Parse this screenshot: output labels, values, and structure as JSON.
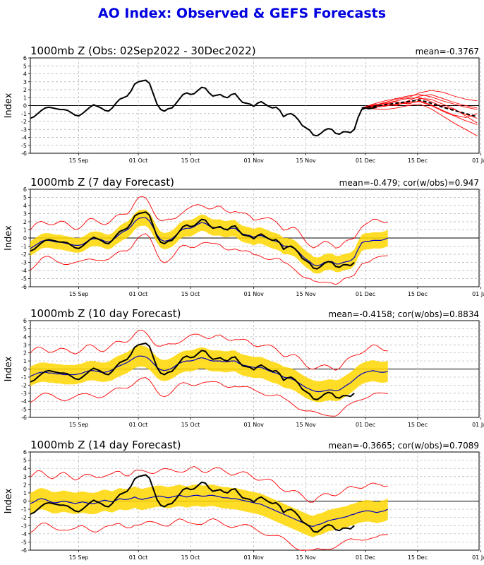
{
  "page_title": "AO Index: Observed & GEFS Forecasts",
  "colors": {
    "title": "#0000e0",
    "observed": "#000000",
    "ensemble": "#ff0000",
    "mean": "#0000c0",
    "spread": "#ffd700",
    "grid": "#b0b0b0"
  },
  "chart_data": [
    {
      "type": "line",
      "title": "1000mb Z (Obs: 02Sep2022 - 30Dec2022)",
      "stat_text": "mean=-0.3767",
      "ylabel": "Index",
      "ylim": [
        -6,
        6
      ],
      "x_ticks": [
        "15 Sep",
        "01 Oct",
        "15 Oct",
        "01 Nov",
        "15 Nov",
        "01 Dec",
        "15 Dec",
        "01 Jan"
      ],
      "observed": [
        -1.6,
        -1.4,
        -1.0,
        -0.6,
        -0.3,
        -0.2,
        -0.3,
        -0.4,
        -0.5,
        -0.5,
        -0.6,
        -0.9,
        -1.2,
        -1.3,
        -1.0,
        -0.6,
        -0.2,
        0.1,
        -0.1,
        -0.3,
        -0.6,
        -0.7,
        -0.3,
        0.3,
        0.8,
        1.0,
        1.2,
        1.8,
        2.7,
        3.0,
        3.1,
        3.2,
        2.8,
        1.5,
        0.2,
        -0.5,
        -0.7,
        -0.4,
        -0.3,
        0.2,
        0.8,
        1.4,
        1.6,
        1.4,
        1.5,
        1.9,
        2.3,
        2.2,
        1.6,
        1.2,
        1.3,
        1.4,
        1.1,
        1.0,
        1.4,
        1.5,
        0.9,
        0.4,
        0.3,
        0.2,
        -0.1,
        0.3,
        0.5,
        0.2,
        -0.1,
        -0.3,
        -0.2,
        -0.6,
        -1.4,
        -1.1,
        -1.0,
        -1.3,
        -1.8,
        -2.5,
        -2.8,
        -3.1,
        -3.7,
        -3.8,
        -3.5,
        -3.1,
        -2.9,
        -3.0,
        -3.5,
        -3.6,
        -3.3,
        -3.3,
        -3.4,
        -3.0,
        -1.5,
        -0.5,
        -0.3,
        -0.4,
        -0.3,
        -0.2
      ],
      "forecast_mean": [
        -0.3,
        -0.1,
        0.1,
        0.3,
        0.5,
        0.7,
        0.3,
        -0.2,
        -0.6,
        -1.0,
        -1.4
      ],
      "forecast_members": [
        [
          -0.3,
          0.2,
          0.6,
          0.9,
          1.2,
          1.4,
          1.1,
          0.6,
          0.2,
          -0.2,
          -0.5
        ],
        [
          -0.3,
          0.0,
          0.4,
          0.8,
          1.0,
          1.6,
          1.9,
          1.7,
          1.2,
          0.8,
          0.6
        ],
        [
          -0.3,
          -0.2,
          -0.1,
          0.2,
          0.3,
          0.5,
          0.0,
          -0.7,
          -1.3,
          -1.9,
          -2.4
        ],
        [
          -0.3,
          -0.4,
          -0.5,
          -0.3,
          0.0,
          0.2,
          -0.4,
          -1.3,
          -2.2,
          -3.0,
          -3.8
        ],
        [
          -0.3,
          0.1,
          0.3,
          0.6,
          0.9,
          1.0,
          0.5,
          -0.1,
          -0.5,
          -1.1,
          -1.6
        ],
        [
          -0.3,
          -0.1,
          0.0,
          0.1,
          0.4,
          0.9,
          0.8,
          0.2,
          -0.4,
          -1.3,
          -2.2
        ],
        [
          -0.3,
          -0.3,
          0.2,
          0.5,
          0.2,
          0.6,
          0.1,
          -0.6,
          -1.2,
          -1.5,
          -1.0
        ],
        [
          -0.3,
          0.0,
          0.3,
          0.0,
          0.6,
          1.2,
          1.4,
          0.9,
          0.4,
          0.0,
          -0.3
        ]
      ]
    },
    {
      "type": "line",
      "title": "1000mb Z (7 day Forecast)",
      "stat_text": "mean=-0.479; cor(w/obs)=0.947",
      "ylabel": "Index",
      "ylim": [
        -6,
        6
      ],
      "x_ticks": [
        "15 Sep",
        "01 Oct",
        "15 Oct",
        "01 Nov",
        "15 Nov",
        "01 Dec",
        "15 Dec",
        "01 Jan"
      ],
      "observed_visible_points": 88,
      "ens_mean": [
        -1.3,
        -1.0,
        -0.7,
        -0.4,
        -0.3,
        -0.3,
        -0.4,
        -0.5,
        -0.5,
        -0.6,
        -0.7,
        -0.8,
        -0.9,
        -0.9,
        -0.8,
        -0.5,
        -0.2,
        -0.1,
        -0.1,
        -0.2,
        -0.4,
        -0.5,
        -0.3,
        0.1,
        0.5,
        0.8,
        1.0,
        1.4,
        2.0,
        2.4,
        2.5,
        2.5,
        2.1,
        1.3,
        0.4,
        -0.2,
        -0.4,
        -0.3,
        -0.1,
        0.3,
        0.8,
        1.1,
        1.2,
        1.2,
        1.4,
        1.7,
        1.9,
        1.8,
        1.5,
        1.3,
        1.3,
        1.3,
        1.1,
        1.1,
        1.2,
        1.2,
        0.8,
        0.5,
        0.4,
        0.3,
        0.1,
        0.3,
        0.3,
        0.1,
        -0.1,
        -0.3,
        -0.4,
        -0.6,
        -1.0,
        -1.0,
        -1.1,
        -1.3,
        -1.7,
        -2.2,
        -2.6,
        -2.9,
        -3.3,
        -3.4,
        -3.3,
        -3.0,
        -2.9,
        -2.9,
        -3.2,
        -3.2,
        -3.0,
        -2.9,
        -2.8,
        -2.4,
        -1.4,
        -0.6,
        -0.4,
        -0.4,
        -0.3,
        -0.3,
        -0.3,
        -0.2,
        0.0
      ],
      "spread_halfwidth": [
        0.9,
        0.9,
        0.9,
        0.9,
        0.9,
        0.9,
        0.9,
        0.9,
        0.9,
        0.9,
        0.9,
        0.9,
        0.9,
        0.9,
        0.9,
        0.9,
        0.9,
        0.9,
        0.9,
        0.9,
        0.9,
        0.9,
        0.9,
        0.9,
        1.0,
        1.0,
        1.0,
        1.0,
        1.0,
        1.0,
        1.0,
        1.0,
        1.0,
        1.0,
        1.0,
        1.0,
        1.0,
        1.0,
        1.0,
        1.0,
        1.0,
        1.0,
        1.0,
        1.0,
        1.0,
        1.0,
        1.0,
        1.0,
        1.0,
        1.0,
        1.0,
        1.0,
        1.0,
        1.0,
        1.0,
        1.0,
        1.0,
        1.0,
        1.0,
        1.0,
        1.0,
        1.0,
        1.0,
        1.0,
        1.0,
        1.0,
        1.0,
        1.0,
        1.0,
        1.0,
        1.0,
        1.0,
        1.0,
        1.0,
        1.0,
        1.0,
        1.0,
        1.0,
        1.0,
        1.0,
        1.0,
        1.0,
        1.0,
        1.0,
        1.0,
        1.0,
        1.0,
        1.0,
        1.0,
        1.0,
        1.0,
        1.0,
        1.0,
        1.0,
        1.0,
        1.0,
        1.0
      ],
      "ens_halfrange": 2.3
    },
    {
      "type": "line",
      "title": "1000mb Z (10 day Forecast)",
      "stat_text": "mean=-0.4158; cor(w/obs)=0.8834",
      "ylabel": "Index",
      "ylim": [
        -6,
        6
      ],
      "x_ticks": [
        "15 Sep",
        "01 Oct",
        "15 Oct",
        "01 Nov",
        "15 Nov",
        "01 Dec",
        "15 Dec",
        "01 Jan"
      ],
      "observed_visible_points": 88,
      "ens_mean": [
        -0.9,
        -0.7,
        -0.5,
        -0.4,
        -0.4,
        -0.5,
        -0.5,
        -0.6,
        -0.6,
        -0.7,
        -0.7,
        -0.7,
        -0.7,
        -0.6,
        -0.5,
        -0.3,
        -0.2,
        -0.2,
        -0.3,
        -0.4,
        -0.4,
        -0.3,
        -0.1,
        0.2,
        0.4,
        0.6,
        0.8,
        1.1,
        1.4,
        1.6,
        1.6,
        1.5,
        1.2,
        0.7,
        0.2,
        -0.1,
        -0.2,
        -0.1,
        0.1,
        0.4,
        0.7,
        0.9,
        1.0,
        1.0,
        1.1,
        1.3,
        1.4,
        1.3,
        1.1,
        1.0,
        1.0,
        1.0,
        0.9,
        0.9,
        1.0,
        1.0,
        0.7,
        0.5,
        0.4,
        0.3,
        0.2,
        0.2,
        0.2,
        0.0,
        -0.2,
        -0.4,
        -0.5,
        -0.7,
        -1.0,
        -1.1,
        -1.2,
        -1.4,
        -1.7,
        -2.0,
        -2.3,
        -2.5,
        -2.7,
        -2.8,
        -2.8,
        -2.7,
        -2.6,
        -2.6,
        -2.7,
        -2.6,
        -2.3,
        -2.0,
        -1.7,
        -1.3,
        -0.9,
        -0.6,
        -0.4,
        -0.3,
        -0.2,
        -0.3,
        -0.4,
        -0.4,
        -0.3
      ],
      "spread_halfwidth": [
        1.2,
        1.2,
        1.2,
        1.2,
        1.2,
        1.2,
        1.2,
        1.2,
        1.2,
        1.2,
        1.2,
        1.2,
        1.2,
        1.2,
        1.2,
        1.2,
        1.2,
        1.2,
        1.2,
        1.2,
        1.2,
        1.2,
        1.3,
        1.3,
        1.3,
        1.3,
        1.3,
        1.3,
        1.3,
        1.3,
        1.3,
        1.3,
        1.3,
        1.3,
        1.3,
        1.3,
        1.3,
        1.3,
        1.3,
        1.3,
        1.3,
        1.3,
        1.3,
        1.3,
        1.3,
        1.3,
        1.3,
        1.3,
        1.3,
        1.3,
        1.3,
        1.3,
        1.3,
        1.3,
        1.3,
        1.3,
        1.3,
        1.3,
        1.3,
        1.3,
        1.3,
        1.3,
        1.3,
        1.3,
        1.3,
        1.3,
        1.3,
        1.3,
        1.3,
        1.3,
        1.3,
        1.3,
        1.3,
        1.3,
        1.3,
        1.3,
        1.3,
        1.3,
        1.3,
        1.3,
        1.3,
        1.3,
        1.3,
        1.3,
        1.3,
        1.3,
        1.3,
        1.3,
        1.3,
        1.3,
        1.3,
        1.3,
        1.3,
        1.3,
        1.3,
        1.3,
        1.3
      ],
      "ens_halfrange": 2.9
    },
    {
      "type": "line",
      "title": "1000mb Z (14 day Forecast)",
      "stat_text": "mean=-0.3665; cor(w/obs)=0.7089",
      "ylabel": "Index",
      "ylim": [
        -6,
        6
      ],
      "x_ticks": [
        "15 Sep",
        "01 Oct",
        "15 Oct",
        "01 Nov",
        "15 Nov",
        "01 Dec",
        "15 Dec",
        "01 Jan"
      ],
      "observed_visible_points": 88,
      "ens_mean": [
        -0.3,
        -0.1,
        0.2,
        0.3,
        0.2,
        0.0,
        -0.2,
        -0.2,
        -0.1,
        0.0,
        -0.1,
        -0.2,
        -0.3,
        -0.2,
        -0.1,
        -0.2,
        -0.3,
        -0.3,
        -0.2,
        0.0,
        0.1,
        0.0,
        -0.1,
        0.1,
        0.3,
        0.2,
        0.2,
        0.3,
        0.5,
        0.3,
        0.2,
        0.3,
        0.4,
        0.5,
        0.6,
        0.6,
        0.5,
        0.4,
        0.5,
        0.6,
        0.7,
        0.6,
        0.5,
        0.6,
        0.7,
        0.7,
        0.6,
        0.6,
        0.7,
        0.7,
        0.6,
        0.5,
        0.4,
        0.4,
        0.3,
        0.3,
        0.2,
        0.1,
        0.0,
        -0.1,
        -0.2,
        -0.3,
        -0.4,
        -0.6,
        -0.8,
        -1.0,
        -1.2,
        -1.4,
        -1.6,
        -1.8,
        -2.0,
        -2.2,
        -2.4,
        -2.6,
        -2.8,
        -3.0,
        -3.1,
        -2.9,
        -2.8,
        -2.6,
        -2.4,
        -2.3,
        -2.2,
        -2.1,
        -2.0,
        -1.9,
        -1.7,
        -1.6,
        -1.4,
        -1.3,
        -1.2,
        -1.2,
        -1.3,
        -1.4,
        -1.3,
        -1.2,
        -1.0
      ],
      "spread_halfwidth": [
        1.3,
        1.3,
        1.3,
        1.3,
        1.3,
        1.3,
        1.3,
        1.3,
        1.3,
        1.3,
        1.3,
        1.3,
        1.3,
        1.3,
        1.3,
        1.3,
        1.3,
        1.3,
        1.3,
        1.3,
        1.3,
        1.3,
        1.3,
        1.3,
        1.3,
        1.3,
        1.3,
        1.3,
        1.3,
        1.3,
        1.3,
        1.3,
        1.3,
        1.3,
        1.3,
        1.3,
        1.3,
        1.3,
        1.3,
        1.3,
        1.3,
        1.3,
        1.3,
        1.3,
        1.3,
        1.3,
        1.3,
        1.3,
        1.3,
        1.3,
        1.3,
        1.3,
        1.3,
        1.3,
        1.3,
        1.3,
        1.3,
        1.3,
        1.3,
        1.3,
        1.3,
        1.3,
        1.3,
        1.3,
        1.3,
        1.3,
        1.3,
        1.3,
        1.3,
        1.3,
        1.3,
        1.3,
        1.3,
        1.3,
        1.3,
        1.3,
        1.3,
        1.3,
        1.3,
        1.3,
        1.3,
        1.3,
        1.3,
        1.3,
        1.3,
        1.3,
        1.3,
        1.3,
        1.3,
        1.3,
        1.3,
        1.3,
        1.3,
        1.3,
        1.3,
        1.3,
        1.3
      ],
      "ens_halfrange": 3.2
    }
  ]
}
